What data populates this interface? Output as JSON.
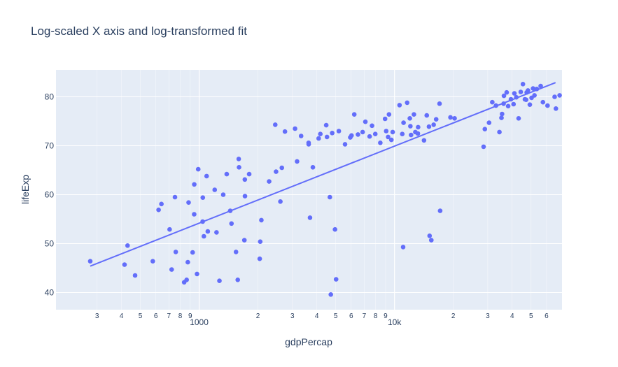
{
  "title": "Log-scaled X axis and log-transformed fit",
  "chart_data": {
    "type": "scatter",
    "x_scale": "log",
    "xlabel": "gdpPercap",
    "ylabel": "lifeExp",
    "xlim": [
      185,
      72000
    ],
    "ylim": [
      36.5,
      85.5
    ],
    "y_ticks": [
      40,
      50,
      60,
      70,
      80
    ],
    "x_major_ticks": [
      {
        "value": 1000,
        "label": "1000"
      },
      {
        "value": 10000,
        "label": "10k"
      }
    ],
    "x_minor_ticks": [
      {
        "value": 300,
        "label": "3"
      },
      {
        "value": 400,
        "label": "4"
      },
      {
        "value": 500,
        "label": "5"
      },
      {
        "value": 600,
        "label": "6"
      },
      {
        "value": 700,
        "label": "7"
      },
      {
        "value": 800,
        "label": "8"
      },
      {
        "value": 900,
        "label": "9"
      },
      {
        "value": 2000,
        "label": "2"
      },
      {
        "value": 3000,
        "label": "3"
      },
      {
        "value": 4000,
        "label": "4"
      },
      {
        "value": 5000,
        "label": "5"
      },
      {
        "value": 6000,
        "label": "6"
      },
      {
        "value": 7000,
        "label": "7"
      },
      {
        "value": 8000,
        "label": "8"
      },
      {
        "value": 9000,
        "label": "9"
      },
      {
        "value": 20000,
        "label": "2"
      },
      {
        "value": 30000,
        "label": "3"
      },
      {
        "value": 40000,
        "label": "4"
      },
      {
        "value": 50000,
        "label": "5"
      },
      {
        "value": 60000,
        "label": "6"
      }
    ],
    "grid": true,
    "marker_color": "#636efa",
    "line_color": "#636efa",
    "series": [
      {
        "type": "scatter",
        "points": [
          [
            277,
            46.4
          ],
          [
            415,
            45.7
          ],
          [
            430,
            49.6
          ],
          [
            470,
            43.5
          ],
          [
            579,
            46.4
          ],
          [
            620,
            56.9
          ],
          [
            641,
            58.1
          ],
          [
            706,
            52.9
          ],
          [
            723,
            44.7
          ],
          [
            752,
            59.5
          ],
          [
            759,
            48.3
          ],
          [
            838,
            42.1
          ],
          [
            863,
            42.6
          ],
          [
            875,
            46.2
          ],
          [
            883,
            58.4
          ],
          [
            926,
            48.2
          ],
          [
            943,
            56.0
          ],
          [
            944,
            62.1
          ],
          [
            975,
            43.8
          ],
          [
            989,
            65.2
          ],
          [
            1042,
            54.5
          ],
          [
            1044,
            59.4
          ],
          [
            1057,
            51.5
          ],
          [
            1092,
            63.8
          ],
          [
            1107,
            52.5
          ],
          [
            1201,
            61.0
          ],
          [
            1227,
            52.3
          ],
          [
            1270,
            42.4
          ],
          [
            1328,
            60.0
          ],
          [
            1384,
            64.2
          ],
          [
            1442,
            56.7
          ],
          [
            1464,
            54.1
          ],
          [
            1544,
            48.3
          ],
          [
            1576,
            42.6
          ],
          [
            1594,
            67.3
          ],
          [
            1600,
            65.6
          ],
          [
            1704,
            50.7
          ],
          [
            1713,
            63.1
          ],
          [
            1716,
            59.7
          ],
          [
            1803,
            64.2
          ],
          [
            2042,
            46.9
          ],
          [
            2054,
            50.4
          ],
          [
            2082,
            54.8
          ],
          [
            2281,
            62.7
          ],
          [
            2452,
            74.3
          ],
          [
            2475,
            64.7
          ],
          [
            2605,
            58.6
          ],
          [
            2650,
            65.5
          ],
          [
            2749,
            72.9
          ],
          [
            3096,
            73.5
          ],
          [
            3171,
            66.8
          ],
          [
            3326,
            72.0
          ],
          [
            3633,
            70.6
          ],
          [
            3636,
            70.3
          ],
          [
            3693,
            55.3
          ],
          [
            3820,
            65.6
          ],
          [
            4090,
            71.5
          ],
          [
            4172,
            72.4
          ],
          [
            4471,
            74.2
          ],
          [
            4512,
            71.8
          ],
          [
            4667,
            59.5
          ],
          [
            4720,
            39.6
          ],
          [
            4797,
            72.6
          ],
          [
            4959,
            52.9
          ],
          [
            5023,
            42.7
          ],
          [
            5187,
            73.0
          ],
          [
            5581,
            70.3
          ],
          [
            5937,
            71.7
          ],
          [
            6025,
            72.1
          ],
          [
            6223,
            76.4
          ],
          [
            6500,
            72.3
          ],
          [
            6868,
            72.8
          ],
          [
            7092,
            74.9
          ],
          [
            7458,
            71.9
          ],
          [
            7671,
            74.1
          ],
          [
            7971,
            72.4
          ],
          [
            8458,
            70.6
          ],
          [
            8948,
            75.5
          ],
          [
            9065,
            73.0
          ],
          [
            9270,
            71.8
          ],
          [
            9370,
            76.4
          ],
          [
            9635,
            71.2
          ],
          [
            9787,
            72.8
          ],
          [
            10611,
            78.3
          ],
          [
            10957,
            72.4
          ],
          [
            11068,
            49.3
          ],
          [
            11124,
            74.7
          ],
          [
            11605,
            78.8
          ],
          [
            11977,
            75.6
          ],
          [
            12057,
            74.0
          ],
          [
            12154,
            72.2
          ],
          [
            12570,
            76.4
          ],
          [
            12779,
            72.8
          ],
          [
            13172,
            72.5
          ],
          [
            13206,
            73.8
          ],
          [
            14154,
            71.1
          ],
          [
            14621,
            76.2
          ],
          [
            15011,
            73.9
          ],
          [
            15120,
            51.6
          ],
          [
            15429,
            50.7
          ],
          [
            15865,
            74.3
          ],
          [
            16339,
            75.4
          ],
          [
            17002,
            78.6
          ],
          [
            17120,
            56.7
          ],
          [
            19329,
            75.8
          ],
          [
            20302,
            75.6
          ],
          [
            28570,
            69.8
          ],
          [
            29000,
            73.4
          ],
          [
            30476,
            74.7
          ],
          [
            31655,
            78.9
          ],
          [
            33052,
            78.2
          ],
          [
            34436,
            72.8
          ],
          [
            35278,
            75.7
          ],
          [
            35523,
            76.5
          ],
          [
            36180,
            78.6
          ],
          [
            36319,
            80.2
          ],
          [
            37506,
            80.9
          ],
          [
            38165,
            78.1
          ],
          [
            39436,
            79.5
          ],
          [
            40676,
            78.5
          ],
          [
            41072,
            80.7
          ],
          [
            42009,
            79.9
          ],
          [
            43173,
            75.6
          ],
          [
            44260,
            81.0
          ],
          [
            45432,
            82.6
          ],
          [
            46500,
            79.5
          ],
          [
            47143,
            79.4
          ],
          [
            47500,
            80.9
          ],
          [
            48200,
            81.3
          ],
          [
            49281,
            78.4
          ],
          [
            50300,
            79.8
          ],
          [
            51200,
            81.7
          ],
          [
            52060,
            80.3
          ],
          [
            53500,
            81.6
          ],
          [
            56000,
            82.2
          ],
          [
            57500,
            78.9
          ],
          [
            60700,
            78.2
          ],
          [
            66000,
            80.0
          ],
          [
            67000,
            77.6
          ],
          [
            70000,
            80.3
          ]
        ]
      },
      {
        "type": "line",
        "points": [
          [
            277,
            45.4
          ],
          [
            66700,
            82.9
          ]
        ]
      }
    ]
  }
}
